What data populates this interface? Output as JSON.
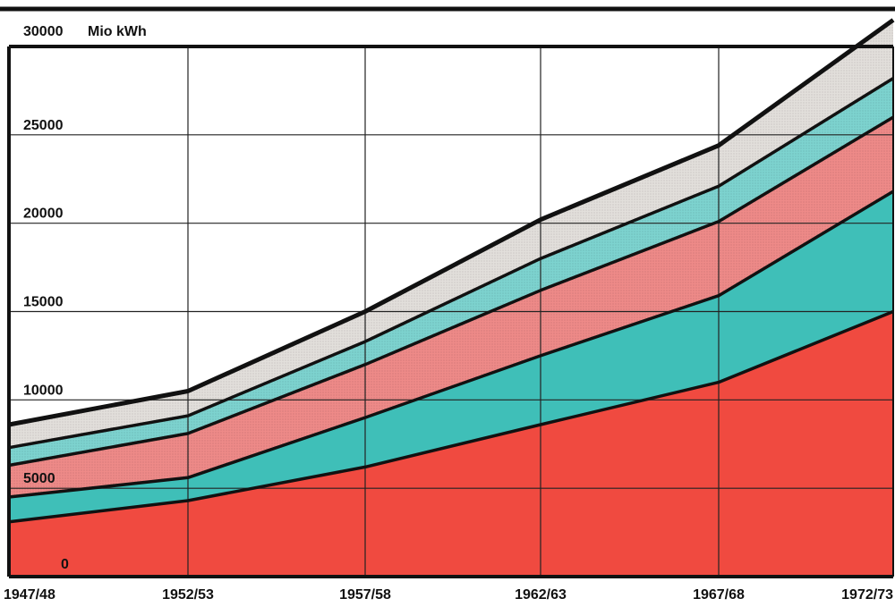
{
  "chart_data": {
    "type": "area",
    "stacked": true,
    "ylabel": "Mio kWh",
    "ylim": [
      0,
      30000
    ],
    "y_ticks": [
      {
        "value": 0,
        "label": "0"
      },
      {
        "value": 5000,
        "label": "5000"
      },
      {
        "value": 10000,
        "label": "10000"
      },
      {
        "value": 15000,
        "label": "15000"
      },
      {
        "value": 20000,
        "label": "20000"
      },
      {
        "value": 25000,
        "label": "25000"
      },
      {
        "value": 30000,
        "label": "30000"
      }
    ],
    "categories": [
      "1947/48",
      "1952/53",
      "1957/58",
      "1962/63",
      "1967/68",
      "1972/73"
    ],
    "grid": true,
    "legend": "none",
    "series": [
      {
        "values": [
          3100,
          4300,
          6200,
          8600,
          11000,
          15000
        ],
        "color": "#f04a40"
      },
      {
        "values": [
          1400,
          1300,
          2800,
          3900,
          4900,
          6800
        ],
        "color": "#3fbfb8"
      },
      {
        "values": [
          1800,
          2500,
          3000,
          3700,
          4200,
          4200
        ],
        "color": "#ee8a88"
      },
      {
        "values": [
          1000,
          1000,
          1300,
          1800,
          2000,
          2200
        ],
        "color": "#7dd3cf"
      },
      {
        "values": [
          1300,
          1400,
          1700,
          2200,
          2300,
          3300
        ],
        "color": "#e2dfdb"
      }
    ]
  }
}
